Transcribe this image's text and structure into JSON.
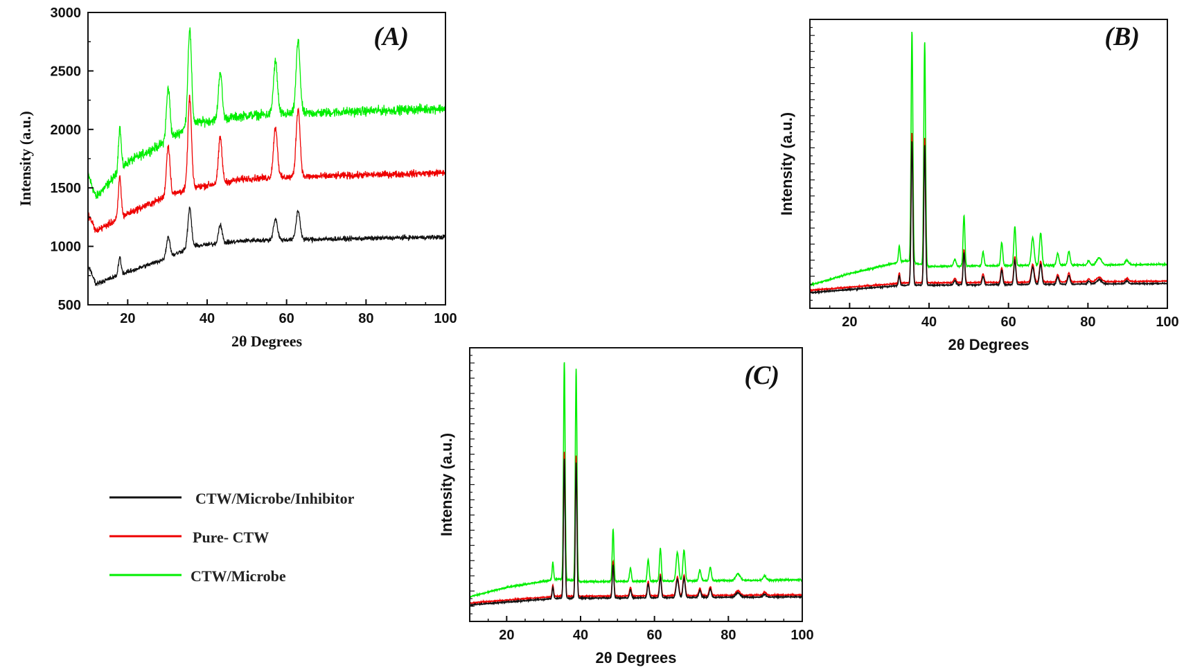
{
  "chart_data": [
    {
      "type": "line",
      "panel_label": "(A)",
      "xlabel": "2θ Degrees",
      "ylabel": "Intensity (a.u.)",
      "xlim": [
        10,
        100
      ],
      "ylim": [
        500,
        3000
      ],
      "x_ticks": [
        20,
        40,
        60,
        80,
        100
      ],
      "y_ticks": [
        500,
        1000,
        1500,
        2000,
        2500,
        3000
      ],
      "x_tick_labels": [
        "20",
        "40",
        "60",
        "80",
        "100"
      ],
      "y_tick_labels": [
        "500",
        "1000",
        "1500",
        "2000",
        "2500",
        "3000"
      ],
      "peaks": [
        {
          "x": 18,
          "h": 0.45,
          "w": 0.35
        },
        {
          "x": 30.2,
          "h": 0.55,
          "w": 0.45
        },
        {
          "x": 35.6,
          "h": 1.0,
          "w": 0.45
        },
        {
          "x": 43.3,
          "h": 0.5,
          "w": 0.45
        },
        {
          "x": 57.2,
          "h": 0.55,
          "w": 0.5
        },
        {
          "x": 62.9,
          "h": 0.75,
          "w": 0.5
        }
      ],
      "series": [
        {
          "name": "CTW/Microbe",
          "color": "#00ee00",
          "base": [
            [
              10,
              1620
            ],
            [
              12,
              1420
            ],
            [
              20,
              1720
            ],
            [
              30,
              1900
            ],
            [
              36,
              2050
            ],
            [
              50,
              2120
            ],
            [
              100,
              2180
            ]
          ],
          "peak_scale": 820,
          "noise": 60
        },
        {
          "name": "Pure- CTW",
          "color": "#ee0000",
          "base": [
            [
              10,
              1280
            ],
            [
              12,
              1130
            ],
            [
              20,
              1280
            ],
            [
              30,
              1430
            ],
            [
              36,
              1500
            ],
            [
              50,
              1580
            ],
            [
              100,
              1630
            ]
          ],
          "peak_scale": 780,
          "noise": 45
        },
        {
          "name": "CTW/Microbe/Inhibitor",
          "color": "#111111",
          "base": [
            [
              10,
              840
            ],
            [
              12,
              680
            ],
            [
              20,
              780
            ],
            [
              30,
              900
            ],
            [
              36,
              1000
            ],
            [
              50,
              1050
            ],
            [
              100,
              1080
            ]
          ],
          "peak_scale": 330,
          "noise": 30
        }
      ]
    },
    {
      "type": "line",
      "panel_label": "(B)",
      "xlabel": "2θ Degrees",
      "ylabel": "Intensity (a.u.)",
      "xlim": [
        10,
        100
      ],
      "ylim": [
        0,
        100
      ],
      "x_ticks": [
        20,
        40,
        60,
        80,
        100
      ],
      "x_tick_labels": [
        "20",
        "40",
        "60",
        "80",
        "100"
      ],
      "peaks": [
        {
          "x": 32.5,
          "h": 0.07,
          "w": 0.2
        },
        {
          "x": 35.7,
          "h": 1.0,
          "w": 0.22
        },
        {
          "x": 38.9,
          "h": 0.97,
          "w": 0.22
        },
        {
          "x": 46.5,
          "h": 0.03,
          "w": 0.3
        },
        {
          "x": 48.8,
          "h": 0.22,
          "w": 0.22
        },
        {
          "x": 53.6,
          "h": 0.06,
          "w": 0.25
        },
        {
          "x": 58.3,
          "h": 0.1,
          "w": 0.25
        },
        {
          "x": 61.6,
          "h": 0.17,
          "w": 0.25
        },
        {
          "x": 66.1,
          "h": 0.12,
          "w": 0.35
        },
        {
          "x": 68.1,
          "h": 0.14,
          "w": 0.3
        },
        {
          "x": 72.4,
          "h": 0.05,
          "w": 0.3
        },
        {
          "x": 75.2,
          "h": 0.06,
          "w": 0.3
        },
        {
          "x": 80.2,
          "h": 0.02,
          "w": 0.3
        },
        {
          "x": 82.8,
          "h": 0.03,
          "w": 0.6
        },
        {
          "x": 89.8,
          "h": 0.02,
          "w": 0.4
        }
      ],
      "series": [
        {
          "name": "CTW/Microbe",
          "color": "#00ee00",
          "base": [
            [
              10,
              8
            ],
            [
              20,
              12
            ],
            [
              34,
              16.5
            ],
            [
              40,
              14.5
            ],
            [
              60,
              14.8
            ],
            [
              100,
              15.2
            ]
          ],
          "peak_scale": 80,
          "noise": 0.4
        },
        {
          "name": "Pure- CTW",
          "color": "#ee0000",
          "base": [
            [
              10,
              6.2
            ],
            [
              20,
              7.3
            ],
            [
              34,
              8.8
            ],
            [
              40,
              8.8
            ],
            [
              100,
              9.4
            ]
          ],
          "peak_scale": 52,
          "noise": 0.3
        },
        {
          "name": "CTW/Microbe/Inhibitor",
          "color": "#111111",
          "base": [
            [
              10,
              5.4
            ],
            [
              20,
              6.5
            ],
            [
              34,
              8.0
            ],
            [
              40,
              8.0
            ],
            [
              100,
              8.6
            ]
          ],
          "peak_scale": 50,
          "noise": 0.3
        }
      ]
    },
    {
      "type": "line",
      "panel_label": "(C)",
      "xlabel": "2θ Degrees",
      "ylabel": "Intensity (a.u.)",
      "xlim": [
        10,
        100
      ],
      "ylim": [
        0,
        100
      ],
      "x_ticks": [
        20,
        40,
        60,
        80,
        100
      ],
      "x_tick_labels": [
        "20",
        "40",
        "60",
        "80",
        "100"
      ],
      "peaks": [
        {
          "x": 32.5,
          "h": 0.08,
          "w": 0.2
        },
        {
          "x": 35.6,
          "h": 1.0,
          "w": 0.22
        },
        {
          "x": 38.8,
          "h": 0.97,
          "w": 0.22
        },
        {
          "x": 48.8,
          "h": 0.24,
          "w": 0.22
        },
        {
          "x": 53.5,
          "h": 0.06,
          "w": 0.25
        },
        {
          "x": 58.3,
          "h": 0.1,
          "w": 0.25
        },
        {
          "x": 61.6,
          "h": 0.15,
          "w": 0.25
        },
        {
          "x": 66.2,
          "h": 0.13,
          "w": 0.35
        },
        {
          "x": 68.0,
          "h": 0.14,
          "w": 0.3
        },
        {
          "x": 72.3,
          "h": 0.05,
          "w": 0.3
        },
        {
          "x": 75.1,
          "h": 0.06,
          "w": 0.3
        },
        {
          "x": 82.6,
          "h": 0.03,
          "w": 0.6
        },
        {
          "x": 89.8,
          "h": 0.02,
          "w": 0.4
        }
      ],
      "series": [
        {
          "name": "CTW/Microbe",
          "color": "#00ee00",
          "base": [
            [
              10,
              9
            ],
            [
              20,
              12.5
            ],
            [
              34,
              15.5
            ],
            [
              40,
              14.5
            ],
            [
              100,
              15.2
            ]
          ],
          "peak_scale": 80,
          "noise": 0.4
        },
        {
          "name": "Pure- CTW",
          "color": "#ee0000",
          "base": [
            [
              10,
              6.7
            ],
            [
              20,
              7.8
            ],
            [
              34,
              9.2
            ],
            [
              40,
              9.2
            ],
            [
              100,
              9.7
            ]
          ],
          "peak_scale": 53,
          "noise": 0.3
        },
        {
          "name": "CTW/Microbe/Inhibitor",
          "color": "#111111",
          "base": [
            [
              10,
              6.0
            ],
            [
              20,
              7.1
            ],
            [
              34,
              8.5
            ],
            [
              40,
              8.5
            ],
            [
              100,
              9.0
            ]
          ],
          "peak_scale": 51,
          "noise": 0.3
        }
      ]
    }
  ],
  "legend": {
    "items": [
      {
        "label": "CTW/Microbe/Inhibitor",
        "color": "#111111"
      },
      {
        "label": "Pure- CTW",
        "color": "#ee0000"
      },
      {
        "label": "CTW/Microbe",
        "color": "#00ee00"
      }
    ]
  }
}
